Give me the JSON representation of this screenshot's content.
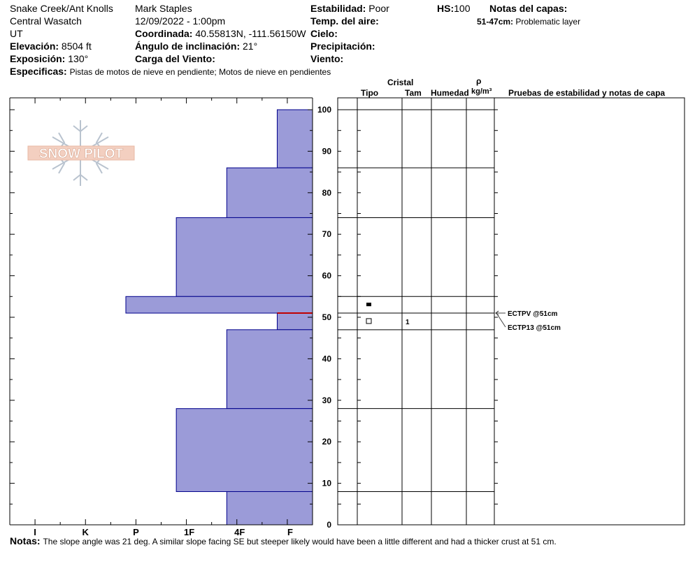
{
  "header": {
    "location": "Snake Creek/Ant Knolls",
    "range": "Central Wasatch",
    "state": "UT",
    "observer": "Mark Staples",
    "datetime": "12/09/2022 - 1:00pm",
    "elevation_label": "Elevación:",
    "elevation_value": "8504 ft",
    "exposure_label": "Exposición:",
    "exposure_value": "130°",
    "coord_label": "Coordinada:",
    "coord_value": "40.55813N, -111.56150W",
    "slope_label": "Ángulo de inclinación:",
    "slope_value": "21°",
    "wind_load_label": "Carga del Viento:",
    "stability_label": "Estabilidad:",
    "stability_value": "Poor",
    "air_temp_label": "Temp. del aire:",
    "sky_label": "Cielo:",
    "precip_label": "Precipitación:",
    "wind_label": "Viento:",
    "hs_label": "HS:",
    "hs_value": "100",
    "layer_notes_label": "Notas del capas:",
    "layer_note_depth": "51-47cm:",
    "layer_note_text": "Problematic layer",
    "specifics_label": "Especificas:",
    "specifics_value": "Pistas de motos de nieve en pendiente;  Motos de nieve en pendientes"
  },
  "columns": {
    "cristal": "Cristal",
    "tipo": "Tipo",
    "tam": "Tam",
    "humedad": "Humedad",
    "rho": "ρ",
    "density_unit": "kg/m³",
    "tests": "Pruebas de estabilidad y notas de capa"
  },
  "footer": {
    "notes_label": "Notas:",
    "notes_value": "The slope angle was 21 deg. A similar slope facing SE but steeper likely would have been a little different and had a thicker crust at 51 cm."
  },
  "logo_text": "SNOW PILOT",
  "colors": {
    "hardness_fill": "#9b9bd8",
    "hardness_stroke": "#00008b",
    "critical_layer": "#c00000"
  },
  "chart_data": {
    "type": "bar",
    "orientation": "horizontal",
    "ylabel": "",
    "ylim": [
      0,
      100
    ],
    "yticks": [
      "0",
      "10",
      "20",
      "30",
      "40",
      "50",
      "60",
      "70",
      "80",
      "90",
      "100"
    ],
    "xtick_labels": [
      "I",
      "K",
      "P",
      "1F",
      "4F",
      "F"
    ],
    "xlim_hardness": [
      0,
      6
    ],
    "hardness_layers": [
      {
        "top": 100,
        "bottom": 86,
        "hardness": 0.7
      },
      {
        "top": 86,
        "bottom": 74,
        "hardness": 1.7
      },
      {
        "top": 74,
        "bottom": 55,
        "hardness": 2.7
      },
      {
        "top": 55,
        "bottom": 51,
        "hardness": 3.7
      },
      {
        "top": 51,
        "bottom": 47,
        "hardness": 0.7
      },
      {
        "top": 47,
        "bottom": 28,
        "hardness": 1.7
      },
      {
        "top": 28,
        "bottom": 8,
        "hardness": 2.7
      },
      {
        "top": 8,
        "bottom": 0,
        "hardness": 1.7
      }
    ],
    "critical_layer_depth": 51,
    "layer_boundaries": [
      100,
      86,
      74,
      55,
      51,
      47,
      28,
      8
    ],
    "grain_symbols": [
      {
        "depth": 53,
        "symbol": "filled-square"
      },
      {
        "depth": 49,
        "symbol": "open-square",
        "size": "1"
      }
    ],
    "stability_tests": [
      {
        "label": "ECTPV @51cm",
        "depth": 51
      },
      {
        "label": "ECTP13 @51cm",
        "depth": 51
      }
    ]
  }
}
